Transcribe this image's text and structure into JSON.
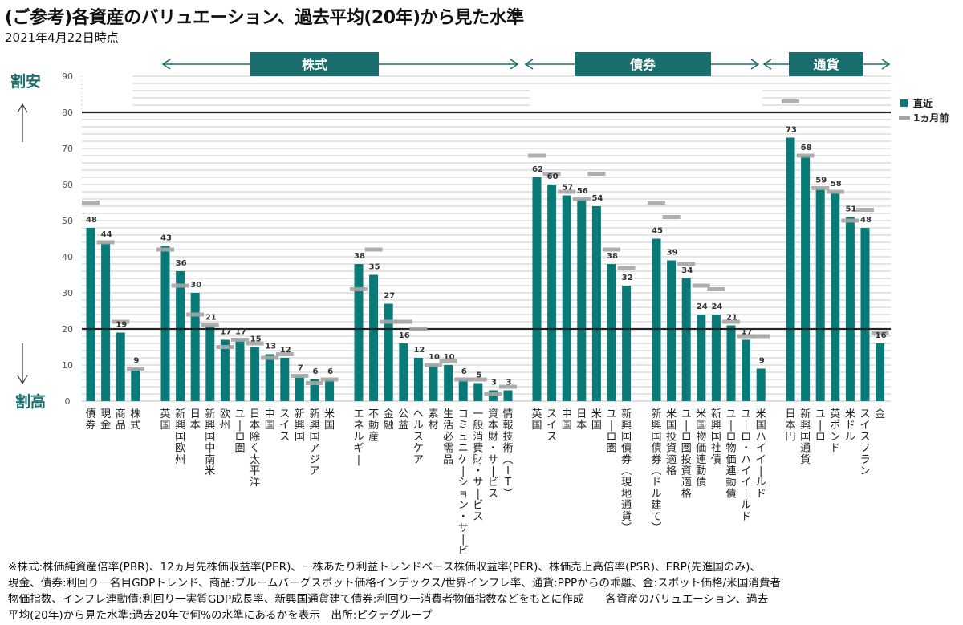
{
  "title": "(ご参考)各資産のバリュエーション、過去平均(20年)から見た水準",
  "subtitle": "2021年4月22日時点",
  "side_labels": {
    "top": "割安",
    "bottom": "割高"
  },
  "colors": {
    "bar": "#0a7a78",
    "marker": "#a6a6a6",
    "band": "#1b6e6e",
    "refline": "#222222",
    "grid": "#c8c8c8"
  },
  "footnote": "※株式:株価純資産倍率(PBR)、12ヵ月先株価収益率(PER)、一株あたり利益トレンドベース株価収益率(PER)、株価売上高倍率(PSR)、ERP(先進国のみ)、\n現金、債券:利回り一名目GDPトレンド、商品:ブルームバーグスポット価格インデックス/世界インフレ率、通貨:PPPからの乖離、金:スポット価格/米国消費者\n物価指数、インフレ連動債:利回り一実質GDP成長率、新興国通貨建て債券:利回り一消費者物価指数などをもとに作成　　各資産のバリュエーション、過去\n平均(20年)から見た水準:過去20年で何%の水準にあるかを表示　出所:ピクテグループ",
  "chart_data": {
    "type": "bar",
    "title": "(ご参考)各資産のバリュエーション、過去平均(20年)から見た水準",
    "xlabel": "",
    "ylabel": "",
    "ylim": [
      0,
      90
    ],
    "yticks": [
      0,
      10,
      20,
      30,
      40,
      50,
      60,
      70,
      80,
      90
    ],
    "reference_lines": [
      20,
      80
    ],
    "grid": true,
    "legend": {
      "position": "right",
      "entries": [
        "直近",
        "1ヵ月前"
      ]
    },
    "sections": [
      {
        "label": "株式",
        "groups": [
          1,
          2
        ]
      },
      {
        "label": "債券",
        "groups": [
          3,
          4
        ]
      },
      {
        "label": "通貨",
        "groups": [
          5
        ]
      }
    ],
    "groups": [
      {
        "categories": [
          "債券",
          "現金",
          "商品",
          "株式"
        ],
        "series": [
          {
            "name": "直近",
            "values": [
              48,
              44,
              19,
              9
            ]
          },
          {
            "name": "1ヵ月前",
            "values": [
              55,
              44,
              22,
              9
            ]
          }
        ]
      },
      {
        "categories": [
          "英国",
          "新興国欧州",
          "日本",
          "新興国中南米",
          "欧州",
          "ユーロ圏",
          "日本除く太平洋",
          "中国",
          "スイス",
          "新興国",
          "新興国アジア",
          "米国"
        ],
        "series": [
          {
            "name": "直近",
            "values": [
              43,
              36,
              30,
              21,
              17,
              17,
              15,
              13,
              12,
              7,
              6,
              6
            ]
          },
          {
            "name": "1ヵ月前",
            "values": [
              42,
              32,
              24,
              21,
              15,
              17,
              16,
              12,
              13,
              7,
              5,
              6
            ]
          }
        ]
      },
      {
        "categories": [
          "エネルギー",
          "不動産",
          "金融",
          "公益",
          "ヘルスケア",
          "素材",
          "生活必需品",
          "コミュニケーション・サービス",
          "一般消費財・サービス",
          "資本財・サービス",
          "情報技術(IT)"
        ],
        "series": [
          {
            "name": "直近",
            "values": [
              38,
              35,
              27,
              16,
              12,
              10,
              10,
              6,
              5,
              3,
              3
            ]
          },
          {
            "name": "1ヵ月前",
            "values": [
              31,
              42,
              22,
              22,
              20,
              10,
              11,
              6,
              6,
              2,
              4
            ]
          }
        ]
      },
      {
        "categories": [
          "英国",
          "スイス",
          "中国",
          "日本",
          "米国",
          "ユーロ圏",
          "新興国債券(現地通貨)"
        ],
        "series": [
          {
            "name": "直近",
            "values": [
              62,
              60,
              57,
              56,
              54,
              38,
              32
            ]
          },
          {
            "name": "1ヵ月前",
            "values": [
              68,
              63,
              58,
              56,
              63,
              42,
              37
            ]
          }
        ]
      },
      {
        "categories": [
          "新興国債券(ドル建て)",
          "米国投資適格",
          "ユーロ圏投資適格",
          "米国物価連動債",
          "新興国社債",
          "ユーロ物価連動債",
          "ユーロ・ハイイールド",
          "米国ハイイールド"
        ],
        "series": [
          {
            "name": "直近",
            "values": [
              45,
              39,
              34,
              24,
              24,
              21,
              17,
              9
            ]
          },
          {
            "name": "1ヵ月前",
            "values": [
              55,
              51,
              38,
              32,
              31,
              22,
              18,
              18
            ]
          }
        ]
      },
      {
        "categories": [
          "日本円",
          "新興国通貨",
          "ユーロ",
          "英ポンド",
          "米ドル",
          "スイスフラン",
          "金"
        ],
        "series": [
          {
            "name": "直近",
            "values": [
              73,
              68,
              59,
              58,
              51,
              48,
              16
            ]
          },
          {
            "name": "1ヵ月前",
            "values": [
              83,
              68,
              59,
              58,
              50,
              53,
              19
            ]
          }
        ]
      }
    ]
  }
}
